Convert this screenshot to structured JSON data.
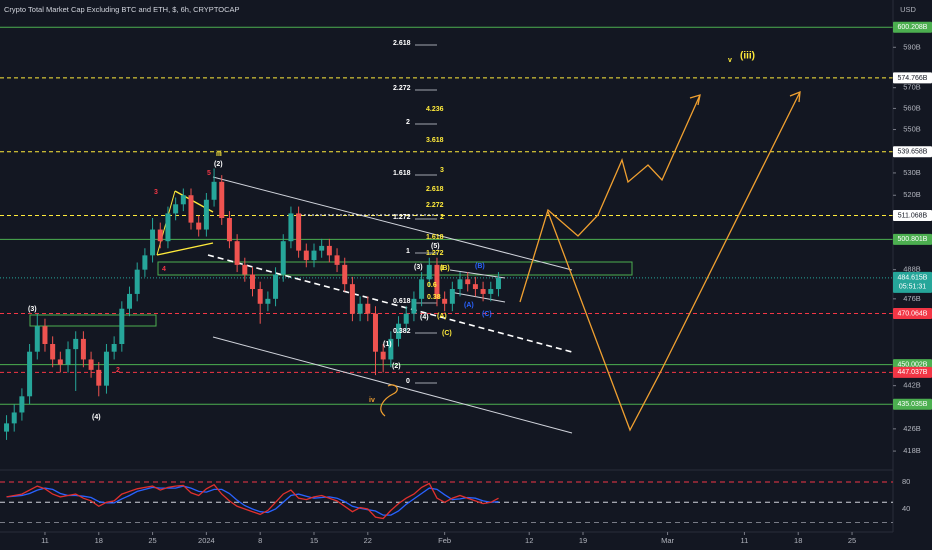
{
  "chart_data": {
    "type": "candlestick",
    "title": "Crypto Total Market Cap Excluding BTC and ETH, $, 6h, CRYPTOCAP",
    "currency": "USD",
    "log_scale": true,
    "up_color": "#26a69a",
    "down_color": "#ef5350",
    "x": [
      -5,
      -4,
      -3,
      -2,
      -1,
      0,
      1,
      2,
      3,
      4,
      5,
      6,
      7,
      8,
      9,
      10,
      11,
      12,
      13,
      14,
      15,
      16,
      17,
      18,
      19,
      20,
      21,
      22,
      23,
      24,
      25,
      26,
      27,
      28,
      29,
      30,
      31,
      32,
      33,
      34,
      35,
      36,
      37,
      38,
      39,
      40,
      41,
      42,
      43,
      44,
      45,
      46,
      47,
      48,
      49,
      50,
      51,
      52,
      53,
      54,
      55,
      56,
      57,
      58,
      59
    ],
    "open": [
      425,
      428,
      432,
      438,
      455,
      465,
      458,
      452,
      450,
      456,
      460,
      452,
      448,
      442,
      455,
      458,
      472,
      478,
      488,
      494,
      505,
      500,
      512,
      516,
      520,
      508,
      505,
      518,
      526,
      510,
      500,
      490,
      486,
      480,
      474,
      476,
      486,
      500,
      512,
      496,
      492,
      496,
      498,
      494,
      490,
      482,
      470,
      474,
      470,
      455,
      452,
      460,
      466,
      470,
      476,
      484,
      490,
      476,
      474,
      480,
      484,
      482,
      480,
      478,
      480
    ],
    "high": [
      431,
      435,
      441,
      458,
      470,
      468,
      461,
      455,
      459,
      463,
      463,
      455,
      451,
      458,
      461,
      475,
      481,
      491,
      497,
      510,
      508,
      515,
      519,
      523,
      523,
      511,
      521,
      532,
      529,
      513,
      503,
      493,
      489,
      483,
      479,
      489,
      503,
      515,
      515,
      499,
      499,
      501,
      501,
      497,
      493,
      485,
      477,
      477,
      473,
      458,
      463,
      469,
      473,
      479,
      487,
      493,
      493,
      479,
      483,
      487,
      487,
      485,
      483,
      483,
      487
    ],
    "low": [
      422,
      425,
      429,
      435,
      452,
      455,
      449,
      447,
      447,
      440,
      449,
      445,
      438,
      439,
      452,
      455,
      469,
      475,
      485,
      491,
      497,
      497,
      509,
      513,
      505,
      502,
      502,
      515,
      507,
      497,
      487,
      483,
      477,
      466,
      471,
      473,
      483,
      497,
      493,
      489,
      489,
      493,
      491,
      487,
      479,
      467,
      467,
      467,
      446,
      447,
      449,
      457,
      463,
      467,
      473,
      481,
      473,
      471,
      471,
      477,
      479,
      477,
      475,
      475,
      477
    ],
    "close": [
      428,
      432,
      438,
      455,
      465,
      458,
      452,
      450,
      456,
      460,
      452,
      448,
      442,
      455,
      458,
      472,
      478,
      488,
      494,
      505,
      500,
      512,
      516,
      520,
      508,
      505,
      518,
      526,
      510,
      500,
      490,
      486,
      480,
      474,
      476,
      486,
      500,
      512,
      496,
      492,
      496,
      498,
      494,
      490,
      482,
      470,
      474,
      470,
      455,
      452,
      460,
      466,
      470,
      476,
      484,
      490,
      476,
      474,
      480,
      484,
      482,
      480,
      478,
      480,
      484.615
    ],
    "last_price": {
      "value": 484.615,
      "label": "484.615B"
    },
    "countdown": "05:51:31",
    "xlim": [
      -5.85,
      110.33
    ],
    "xticks": [
      {
        "value": 0,
        "label": "11"
      },
      {
        "value": 7,
        "label": "18"
      },
      {
        "value": 14,
        "label": "25"
      },
      {
        "value": 21,
        "label": "2024"
      },
      {
        "value": 28,
        "label": "8"
      },
      {
        "value": 35,
        "label": "15"
      },
      {
        "value": 42,
        "label": "22"
      },
      {
        "value": 52,
        "label": "Feb"
      },
      {
        "value": 63,
        "label": "12"
      },
      {
        "value": 70,
        "label": "19"
      },
      {
        "value": 81,
        "label": "Mar"
      },
      {
        "value": 91,
        "label": "11"
      },
      {
        "value": 98,
        "label": "18"
      },
      {
        "value": 105,
        "label": "25"
      }
    ],
    "ylim": [
      411.3,
      614.3
    ],
    "yticks": [
      {
        "value": 590,
        "label": "590B"
      },
      {
        "value": 570,
        "label": "570B"
      },
      {
        "value": 560,
        "label": "560B"
      },
      {
        "value": 550,
        "label": "550B"
      },
      {
        "value": 530,
        "label": "530B"
      },
      {
        "value": 520,
        "label": "520B"
      },
      {
        "value": 488,
        "label": "488B"
      },
      {
        "value": 476,
        "label": "476B"
      },
      {
        "value": 442,
        "label": "442B"
      },
      {
        "value": 426,
        "label": "426B"
      },
      {
        "value": 418,
        "label": "418B"
      }
    ],
    "levels": [
      {
        "value": 600.208,
        "label": "600.208B",
        "color": "#4caf50",
        "dashed": false,
        "label_bg": "#4caf50",
        "label_text": "#ffffff"
      },
      {
        "value": 574.766,
        "label": "574.766B",
        "color": "#ffeb3b",
        "dashed": true,
        "label_bg": "#ffffff",
        "label_text": "#131722"
      },
      {
        "value": 539.658,
        "label": "539.658B",
        "color": "#ffeb3b",
        "dashed": true,
        "label_bg": "#ffffff",
        "label_text": "#131722"
      },
      {
        "value": 511.068,
        "label": "511.068B",
        "color": "#ffeb3b",
        "dashed": true,
        "label_bg": "#ffffff",
        "label_text": "#131722"
      },
      {
        "value": 500.801,
        "label": "500.801B",
        "color": "#4caf50",
        "dashed": false,
        "label_bg": "#4caf50",
        "label_text": "#ffffff"
      },
      {
        "value": 470.064,
        "label": "470.064B",
        "color": "#f23645",
        "dashed": true,
        "label_bg": "#f23645",
        "label_text": "#ffffff"
      },
      {
        "value": 450.002,
        "label": "450.002B",
        "color": "#4caf50",
        "dashed": false,
        "label_bg": "#4caf50",
        "label_text": "#ffffff"
      },
      {
        "value": 447.037,
        "label": "447.037B",
        "color": "#f23645",
        "dashed": true,
        "label_bg": "#f23645",
        "label_text": "#ffffff"
      },
      {
        "value": 435.035,
        "label": "435.035B",
        "color": "#4caf50",
        "dashed": false,
        "label_bg": "#4caf50",
        "label_text": "#ffffff"
      }
    ],
    "annotations": [
      {
        "text": "2.618",
        "color": "#ffffff"
      },
      {
        "text": "2.272",
        "color": "#ffffff"
      },
      {
        "text": "2",
        "color": "#ffffff"
      },
      {
        "text": "1.618",
        "color": "#ffffff"
      },
      {
        "text": "1.272",
        "color": "#ffffff"
      },
      {
        "text": "1",
        "color": "#ffffff"
      },
      {
        "text": "0.618",
        "color": "#ffffff"
      },
      {
        "text": "0.382",
        "color": "#ffffff"
      },
      {
        "text": "0",
        "color": "#ffffff"
      },
      {
        "text": "4.236",
        "color": "#ffeb3b"
      },
      {
        "text": "3.618",
        "color": "#ffeb3b"
      },
      {
        "text": "3",
        "color": "#ffeb3b"
      },
      {
        "text": "2.618",
        "color": "#ffeb3b"
      },
      {
        "text": "2.272",
        "color": "#ffeb3b"
      },
      {
        "text": "2",
        "color": "#ffeb3b"
      },
      {
        "text": "1.618",
        "color": "#ffeb3b"
      },
      {
        "text": "1.272",
        "color": "#ffeb3b"
      },
      {
        "text": "1",
        "color": "#ffeb3b"
      },
      {
        "text": "0.6",
        "color": "#ffeb3b"
      },
      {
        "text": "0.38",
        "color": "#ffeb3b"
      },
      {
        "text": "(3)",
        "color": "#ffffff"
      },
      {
        "text": "(4)",
        "color": "#ffffff"
      },
      {
        "text": "2",
        "color": "#f23645"
      },
      {
        "text": "3",
        "color": "#f23645"
      },
      {
        "text": "4",
        "color": "#f23645"
      },
      {
        "text": "5",
        "color": "#f23645"
      },
      {
        "text": "iii",
        "color": "#ffeb3b"
      },
      {
        "text": "(2)",
        "color": "#ffffff"
      },
      {
        "text": "(1)",
        "color": "#ffffff"
      },
      {
        "text": "(2)",
        "color": "#ffffff"
      },
      {
        "text": "iv",
        "color": "#f0a030"
      },
      {
        "text": "(3)",
        "color": "#ffffff"
      },
      {
        "text": "(4)",
        "color": "#ffffff"
      },
      {
        "text": "(5)",
        "color": "#ffffff"
      },
      {
        "text": "(A)",
        "color": "#ffeb3b"
      },
      {
        "text": "(B)",
        "color": "#ffeb3b"
      },
      {
        "text": "(C)",
        "color": "#ffeb3b"
      },
      {
        "text": "v",
        "color": "#ffeb3b"
      },
      {
        "text": "(iii)",
        "color": "#ffeb3b"
      },
      {
        "text": "(B)",
        "color": "#2962ff"
      },
      {
        "text": "(A)",
        "color": "#2962ff"
      },
      {
        "text": "(C)",
        "color": "#2962ff"
      }
    ],
    "oscillator": {
      "ylim": [
        0,
        100
      ],
      "yticks": [
        80,
        40
      ],
      "levels": [
        {
          "value": 80,
          "color": "#f23645"
        },
        {
          "value": 50,
          "color": "#d1d4dc"
        },
        {
          "value": 20,
          "color": "#787b86"
        }
      ],
      "series": [
        {
          "color": "#2962ff",
          "values": [
            58,
            59,
            60,
            63,
            68,
            71,
            69,
            63,
            60,
            60,
            59,
            57,
            51,
            49,
            49,
            55,
            60,
            66,
            69,
            72,
            71,
            71,
            71,
            74,
            71,
            66,
            65,
            69,
            69,
            63,
            53,
            45,
            40,
            36,
            35,
            40,
            50,
            60,
            62,
            59,
            56,
            57,
            58,
            56,
            51,
            44,
            41,
            39,
            37,
            31,
            31,
            37,
            47,
            55,
            63,
            71,
            69,
            61,
            54,
            55,
            57,
            56,
            52,
            50,
            51
          ]
        },
        {
          "color": "#e0302e",
          "values": [
            58,
            60,
            62,
            68,
            74,
            70,
            62,
            58,
            60,
            62,
            56,
            52,
            44,
            50,
            52,
            62,
            66,
            70,
            72,
            74,
            68,
            72,
            74,
            75,
            64,
            60,
            70,
            76,
            62,
            52,
            44,
            40,
            36,
            32,
            38,
            50,
            62,
            68,
            56,
            54,
            58,
            60,
            56,
            52,
            44,
            36,
            42,
            40,
            28,
            26,
            38,
            48,
            56,
            62,
            72,
            78,
            56,
            50,
            56,
            60,
            56,
            52,
            48,
            50,
            56
          ]
        }
      ]
    }
  }
}
